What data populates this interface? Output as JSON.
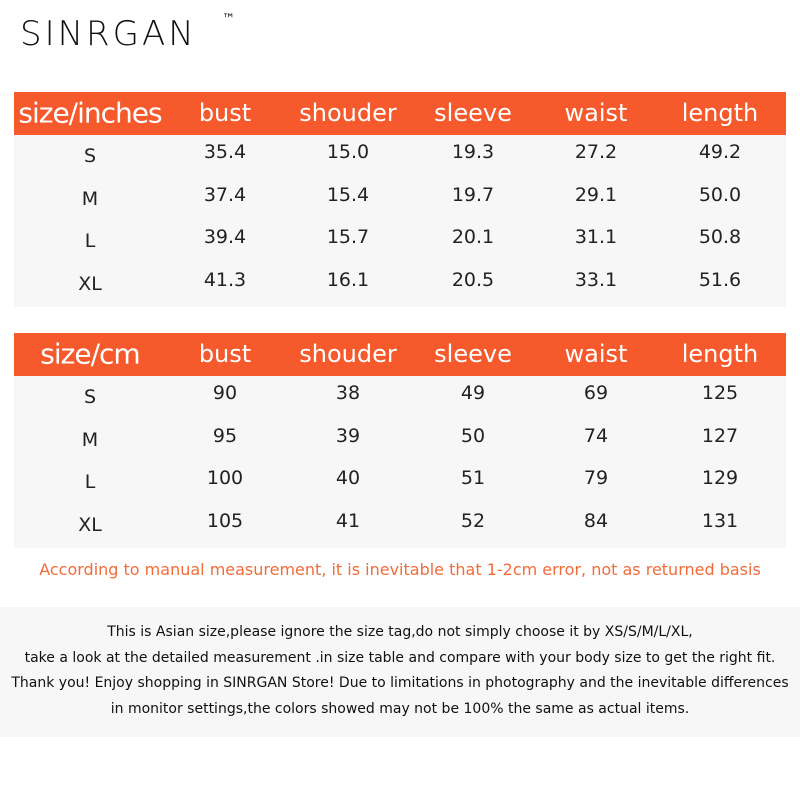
{
  "brand": {
    "name": "SINRGAN",
    "mark": "™"
  },
  "tables": [
    {
      "header": [
        "size/inches",
        "bust",
        "shouder",
        "sleeve",
        "waist",
        "length"
      ],
      "rows": [
        [
          "S",
          "35.4",
          "15.0",
          "19.3",
          "27.2",
          "49.2"
        ],
        [
          "M",
          "37.4",
          "15.4",
          "19.7",
          "29.1",
          "50.0"
        ],
        [
          "L",
          "39.4",
          "15.7",
          "20.1",
          "31.1",
          "50.8"
        ],
        [
          "XL",
          "41.3",
          "16.1",
          "20.5",
          "33.1",
          "51.6"
        ]
      ]
    },
    {
      "header": [
        "size/cm",
        "bust",
        "shouder",
        "sleeve",
        "waist",
        "length"
      ],
      "rows": [
        [
          "S",
          "90",
          "38",
          "49",
          "69",
          "125"
        ],
        [
          "M",
          "95",
          "39",
          "50",
          "74",
          "127"
        ],
        [
          "L",
          "100",
          "40",
          "51",
          "79",
          "129"
        ],
        [
          "XL",
          "105",
          "41",
          "52",
          "84",
          "131"
        ]
      ]
    }
  ],
  "note": "According to manual measurement, it is inevitable that 1-2cm error, not as returned basis",
  "disclaimer": [
    "This is Asian size,please ignore the size tag,do not simply choose it by XS/S/M/L/XL,",
    "take a look at the detailed measurement .in size table and compare with your body size to get the right fit.",
    "Thank you! Enjoy shopping in SINRGAN Store!  Due to limitations in photography and the inevitable differences",
    "in monitor settings,the colors showed may not be 100% the same as actual items."
  ]
}
